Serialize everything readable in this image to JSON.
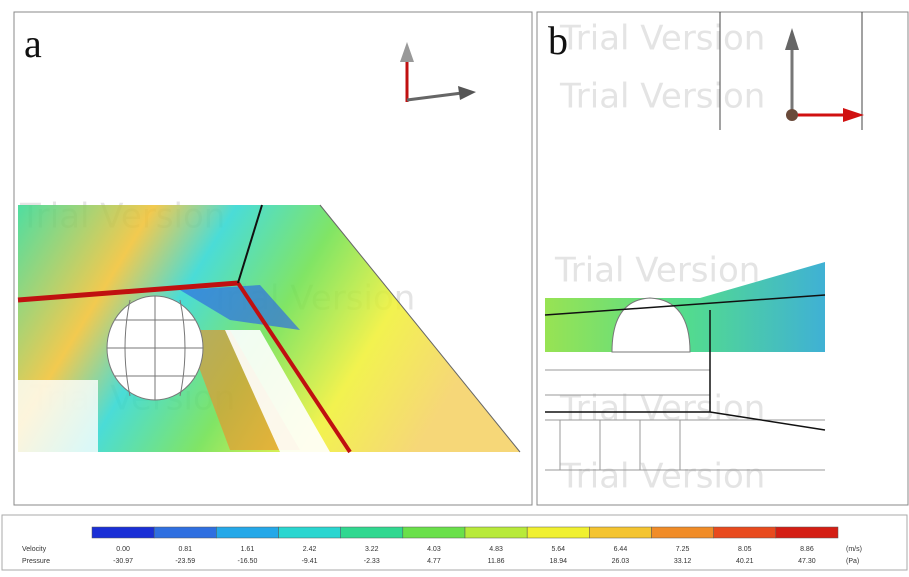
{
  "panels": [
    {
      "label": "a"
    },
    {
      "label": "b"
    }
  ],
  "watermark": "Trial Version",
  "legend": {
    "colors": [
      "#1a2fd6",
      "#2f6fe0",
      "#25a8e8",
      "#2ad6d0",
      "#30d890",
      "#6ae04a",
      "#b8ea3a",
      "#f0f030",
      "#f4c430",
      "#f08c28",
      "#e84a1e",
      "#d41e14"
    ],
    "rows": [
      {
        "label": "Velocity",
        "unit": "(m/s)",
        "values": [
          "0.00",
          "0.81",
          "1.61",
          "2.42",
          "3.22",
          "4.03",
          "4.83",
          "5.64",
          "6.44",
          "7.25",
          "8.05",
          "8.86"
        ]
      },
      {
        "label": "Pressure",
        "unit": "(Pa)",
        "values": [
          "-30.97",
          "-23.59",
          "-16.50",
          "-9.41",
          "-2.33",
          "4.77",
          "11.86",
          "18.94",
          "26.03",
          "33.12",
          "40.21",
          "47.30"
        ]
      }
    ]
  }
}
